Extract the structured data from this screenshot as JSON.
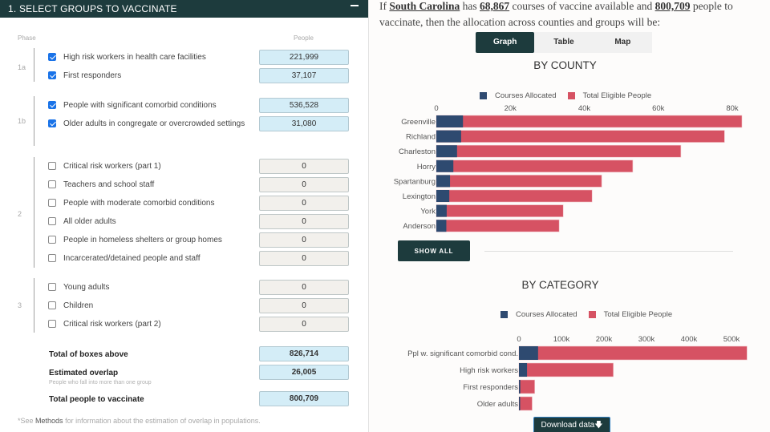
{
  "left_panel": {
    "title": "1. SELECT GROUPS TO VACCINATE",
    "collapse_icon": "minus-icon",
    "col_phase": "Phase",
    "col_people": "People",
    "phases": [
      {
        "label": "1a",
        "groups": [
          {
            "label": "High risk workers in health care facilities",
            "checked": true,
            "value": "221,999"
          },
          {
            "label": "First responders",
            "checked": true,
            "value": "37,107"
          }
        ]
      },
      {
        "label": "1b",
        "groups": [
          {
            "label": "People with significant comorbid conditions",
            "checked": true,
            "value": "536,528"
          },
          {
            "label": "Older adults in congregate or overcrowded settings",
            "checked": true,
            "value": "31,080"
          }
        ]
      },
      {
        "label": "2",
        "groups": [
          {
            "label": "Critical risk workers (part 1)",
            "checked": false,
            "value": "0"
          },
          {
            "label": "Teachers and school staff",
            "checked": false,
            "value": "0"
          },
          {
            "label": "People with moderate comorbid conditions",
            "checked": false,
            "value": "0"
          },
          {
            "label": "All older adults",
            "checked": false,
            "value": "0"
          },
          {
            "label": "People in homeless shelters or group homes",
            "checked": false,
            "value": "0"
          },
          {
            "label": "Incarcerated/detained people and staff",
            "checked": false,
            "value": "0"
          }
        ]
      },
      {
        "label": "3",
        "groups": [
          {
            "label": "Young adults",
            "checked": false,
            "value": "0"
          },
          {
            "label": "Children",
            "checked": false,
            "value": "0"
          },
          {
            "label": "Critical risk workers (part 2)",
            "checked": false,
            "value": "0"
          }
        ]
      }
    ],
    "totals": {
      "boxes_label": "Total of boxes above",
      "boxes_value": "826,714",
      "overlap_label": "Estimated overlap",
      "overlap_value": "26,005",
      "overlap_sub": "People who fall into more than one group",
      "vaccinate_label": "Total people to vaccinate",
      "vaccinate_value": "800,709"
    },
    "footnote_pre": "*See ",
    "footnote_link": "Methods",
    "footnote_post": " for information about the estimation of overlap in populations."
  },
  "right_panel": {
    "intro": {
      "p1": "If ",
      "state": "South Carolina",
      "p2": " has ",
      "courses": "68,867",
      "p3": " courses of vaccine available and ",
      "people": "800,709",
      "p4": " people to vaccinate, then the allocation across counties and groups will be:"
    },
    "tabs": [
      "Graph",
      "Table",
      "Map"
    ],
    "active_tab": "Graph",
    "show_all_label": "SHOW ALL",
    "download_label": "Download data",
    "download_icon": "arrow-down-icon"
  },
  "colors": {
    "header": "#1d3b3d",
    "courses": "#2e4a70",
    "eligible": "#d65263",
    "checkbox": "#1a73e8",
    "box_on": "#d4edf7"
  },
  "chart_data": [
    {
      "type": "bar",
      "orientation": "horizontal",
      "stacked": "overlay",
      "title": "BY COUNTY",
      "legend": [
        "Courses Allocated",
        "Total Eligible People"
      ],
      "legend_position": "top",
      "categories": [
        "Greenville",
        "Richland",
        "Charleston",
        "Horry",
        "Spartanburg",
        "Lexington",
        "York",
        "Anderson"
      ],
      "series": [
        {
          "name": "Courses Allocated",
          "values": [
            7200,
            6700,
            5600,
            4600,
            3700,
            3500,
            2800,
            2700
          ]
        },
        {
          "name": "Total Eligible People",
          "values": [
            82600,
            77900,
            66100,
            53100,
            44700,
            42100,
            34300,
            33200
          ]
        }
      ],
      "xticks": [
        "0",
        "20k",
        "40k",
        "60k",
        "80k"
      ],
      "xtick_values": [
        0,
        20000,
        40000,
        60000,
        80000
      ],
      "xlim": [
        0,
        80000
      ],
      "axis_position": "top",
      "grid": false
    },
    {
      "type": "bar",
      "orientation": "horizontal",
      "stacked": "overlay",
      "title": "BY CATEGORY",
      "legend": [
        "Courses Allocated",
        "Total Eligible People"
      ],
      "legend_position": "top",
      "categories": [
        "Ppl w. significant comorbid cond.",
        "High risk workers",
        "First responders",
        "Older adults"
      ],
      "series": [
        {
          "name": "Courses Allocated",
          "values": [
            45000,
            19000,
            3200,
            2700
          ]
        },
        {
          "name": "Total Eligible People",
          "values": [
            536528,
            221999,
            37107,
            31080
          ]
        }
      ],
      "xticks": [
        "0",
        "100k",
        "200k",
        "300k",
        "400k",
        "500k"
      ],
      "xtick_values": [
        0,
        100000,
        200000,
        300000,
        400000,
        500000
      ],
      "xlim": [
        0,
        500000
      ],
      "axis_position": "top",
      "grid": false
    }
  ]
}
